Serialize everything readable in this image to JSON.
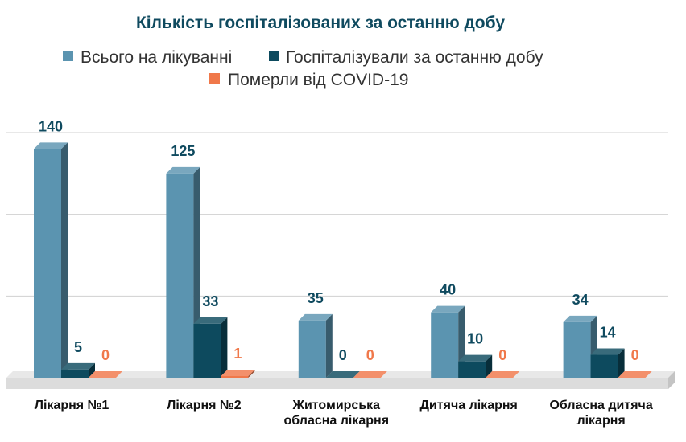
{
  "colors": {
    "series": [
      "#5b94b0",
      "#0d4a5e",
      "#f0784a"
    ],
    "label": [
      "#0f4a5f",
      "#0f4a5f",
      "#f0784a"
    ],
    "grid": "#d0d0d0",
    "floor": "#dcdcdc"
  },
  "chart_data": {
    "type": "bar",
    "title": "Кількість госпіталізованих за останню добу",
    "categories": [
      [
        "Лікарня №1"
      ],
      [
        "Лікарня №2"
      ],
      [
        "Житомирська",
        "обласна лікарня"
      ],
      [
        "Дитяча лікарня"
      ],
      [
        "Обласна дитяча",
        "лікарня"
      ]
    ],
    "series": [
      {
        "name": "Всього на лікуванні",
        "values": [
          140,
          125,
          35,
          40,
          34
        ]
      },
      {
        "name": "Госпіталізували за останню добу",
        "values": [
          5,
          33,
          0,
          10,
          14
        ]
      },
      {
        "name": "Померли від COVID-19",
        "values": [
          0,
          1,
          0,
          0,
          0
        ]
      }
    ],
    "ylim": [
      0,
      150
    ],
    "grid": true,
    "legend_position": "top",
    "style": "3d-column"
  }
}
